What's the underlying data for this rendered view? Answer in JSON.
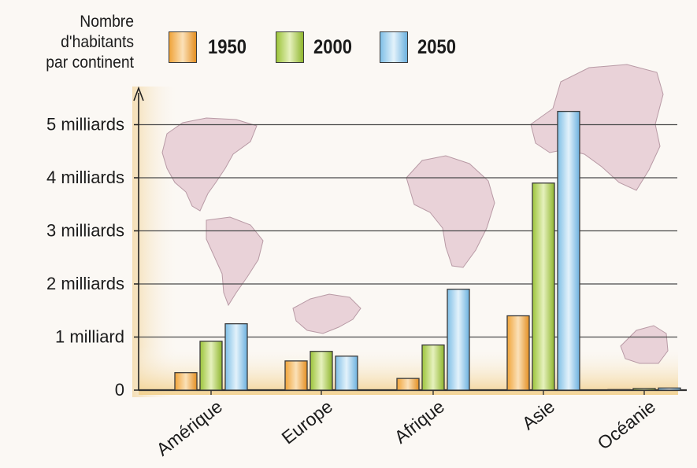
{
  "chart_data": {
    "type": "bar",
    "ylabel_lines": [
      "Nombre",
      "d'habitants",
      "par continent"
    ],
    "categories": [
      "Amérique",
      "Europe",
      "Afrique",
      "Asie",
      "Océanie"
    ],
    "series": [
      {
        "name": "1950",
        "values": [
          0.33,
          0.55,
          0.22,
          1.4,
          0.01
        ],
        "color": "#f1a033"
      },
      {
        "name": "2000",
        "values": [
          0.92,
          0.73,
          0.85,
          3.9,
          0.03
        ],
        "color": "#a9cc3c"
      },
      {
        "name": "2050",
        "values": [
          1.25,
          0.64,
          1.9,
          5.25,
          0.04
        ],
        "color": "#8cc7ec"
      }
    ],
    "ytick_values": [
      0,
      1,
      2,
      3,
      4,
      5
    ],
    "ytick_labels": [
      "0",
      "1 milliard",
      "2 milliards",
      "3 milliards",
      "4 milliards",
      "5 milliards"
    ],
    "ylim": [
      0,
      5.6
    ],
    "unit": "milliards",
    "grid": true,
    "legend_position": "top"
  }
}
